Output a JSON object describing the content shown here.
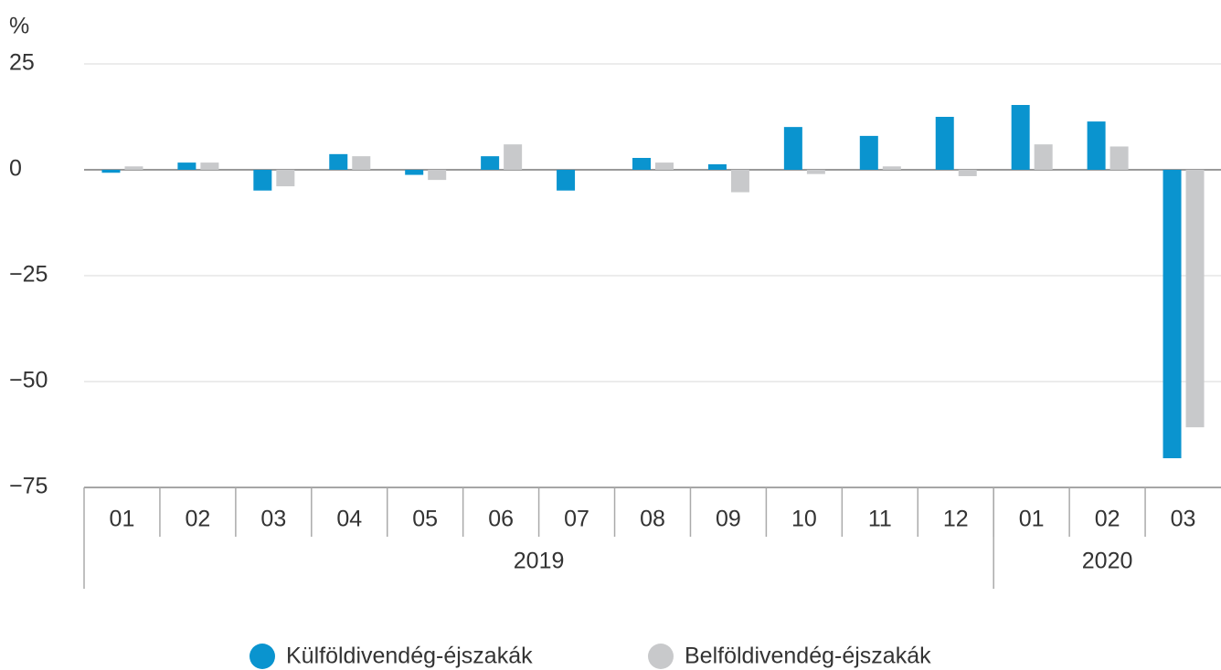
{
  "chart_data": {
    "type": "bar",
    "y_unit": "%",
    "categories": [
      "01",
      "02",
      "03",
      "04",
      "05",
      "06",
      "07",
      "08",
      "09",
      "10",
      "11",
      "12",
      "01",
      "02",
      "03"
    ],
    "x_groups": [
      {
        "label": "2019",
        "count": 12
      },
      {
        "label": "2020",
        "count": 3
      }
    ],
    "series": [
      {
        "name": "Külföldivendég-éjszakák",
        "color": "#0a94cf",
        "values": [
          -0.7,
          1.7,
          -4.9,
          3.7,
          -1.2,
          3.2,
          -4.9,
          2.8,
          1.3,
          10.1,
          8,
          12.5,
          15.3,
          11.4,
          -68.1
        ]
      },
      {
        "name": "Belföldivendég-éjszakák",
        "color": "#c8c9cb",
        "values": [
          0.8,
          1.7,
          -3.9,
          3.2,
          -2.4,
          6,
          0,
          1.7,
          -5.3,
          -1,
          0.8,
          -1.5,
          6,
          5.5,
          -60.8
        ]
      }
    ],
    "ylim": [
      -75,
      25
    ],
    "yticks": [
      {
        "value": -75,
        "label": "−75"
      },
      {
        "value": -50,
        "label": "−50"
      },
      {
        "value": -25,
        "label": "−25"
      },
      0,
      25
    ],
    "grid": true,
    "legend": "bottom"
  }
}
